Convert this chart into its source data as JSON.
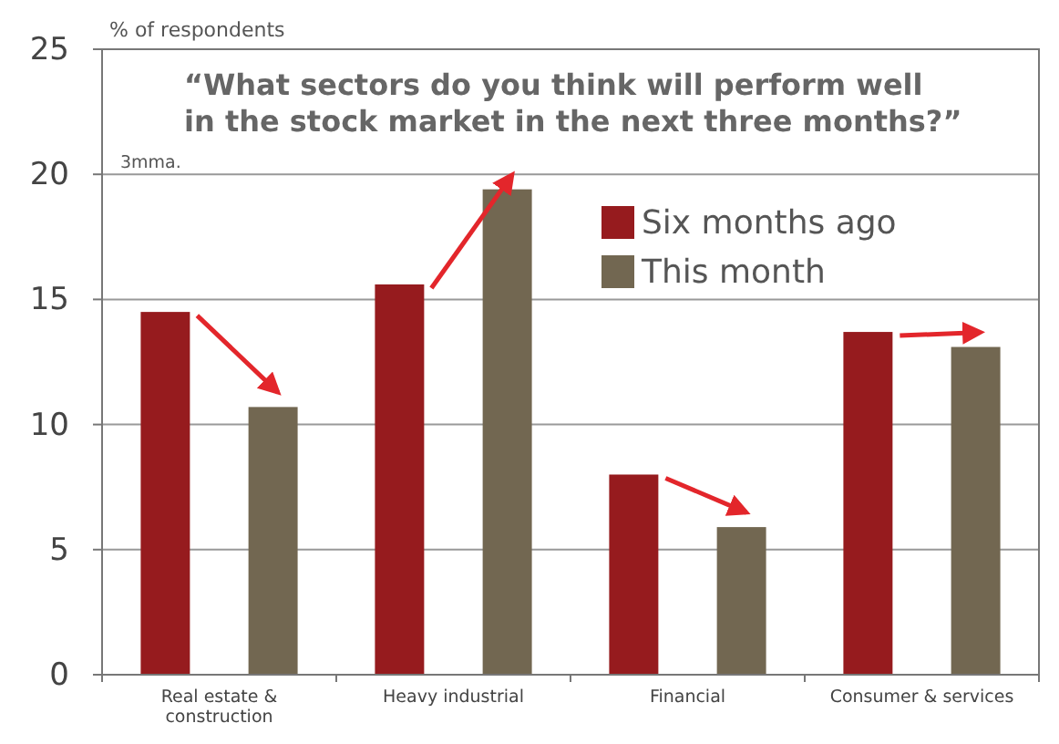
{
  "chart_data": {
    "type": "bar",
    "title": "“What sectors do you think will perform well\nin the stock market in the next three months?”",
    "ylabel": "% of respondents",
    "annotations": [
      "3mma."
    ],
    "categories": [
      "Real estate &\nconstruction",
      "Heavy industrial",
      "Financial",
      "Consumer & services"
    ],
    "series": [
      {
        "name": "Six months ago",
        "color": "#961b1e",
        "values": [
          14.5,
          15.6,
          8.0,
          13.7
        ]
      },
      {
        "name": "This month",
        "color": "#726751",
        "values": [
          10.7,
          19.4,
          5.9,
          13.1
        ]
      }
    ],
    "ylim": [
      0,
      25
    ],
    "yticks": [
      0,
      5,
      10,
      15,
      20,
      25
    ],
    "grid": "y",
    "legend": "top right"
  }
}
